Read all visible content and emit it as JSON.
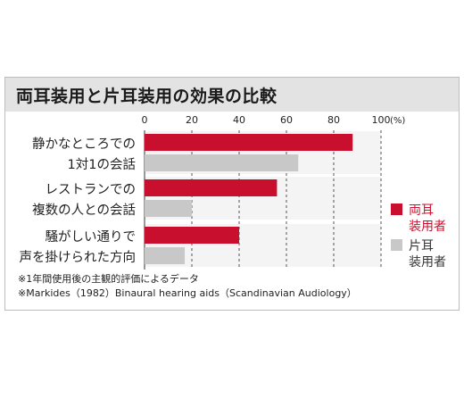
{
  "title": "両耳装用と片耳装用の効果の比較",
  "chart_data": {
    "type": "bar",
    "orientation": "horizontal",
    "categories": [
      [
        "静かなところでの",
        "1対1の会話"
      ],
      [
        "レストランでの",
        "複数の人との会話"
      ],
      [
        "騒がしい通りで",
        "声を掛けられた方向"
      ]
    ],
    "series": [
      {
        "name": "両耳装用者",
        "legend_lines": [
          "両耳",
          "装用者"
        ],
        "color": "#c8102e",
        "values": [
          88,
          56,
          40
        ]
      },
      {
        "name": "片耳装用者",
        "legend_lines": [
          "片耳",
          "装用者"
        ],
        "color": "#c8c8c8",
        "values": [
          65,
          20,
          17
        ]
      }
    ],
    "x_ticks": [
      "0",
      "20",
      "40",
      "60",
      "80",
      "100"
    ],
    "x_unit": "(%)",
    "xlim": [
      0,
      100
    ],
    "grid": "dashed-vertical",
    "legend_position": "right"
  },
  "notes": [
    "※1年間使用後の主観的評価によるデータ",
    "※Markides（1982）Binaural hearing aids（Scandinavian Audiology）"
  ]
}
